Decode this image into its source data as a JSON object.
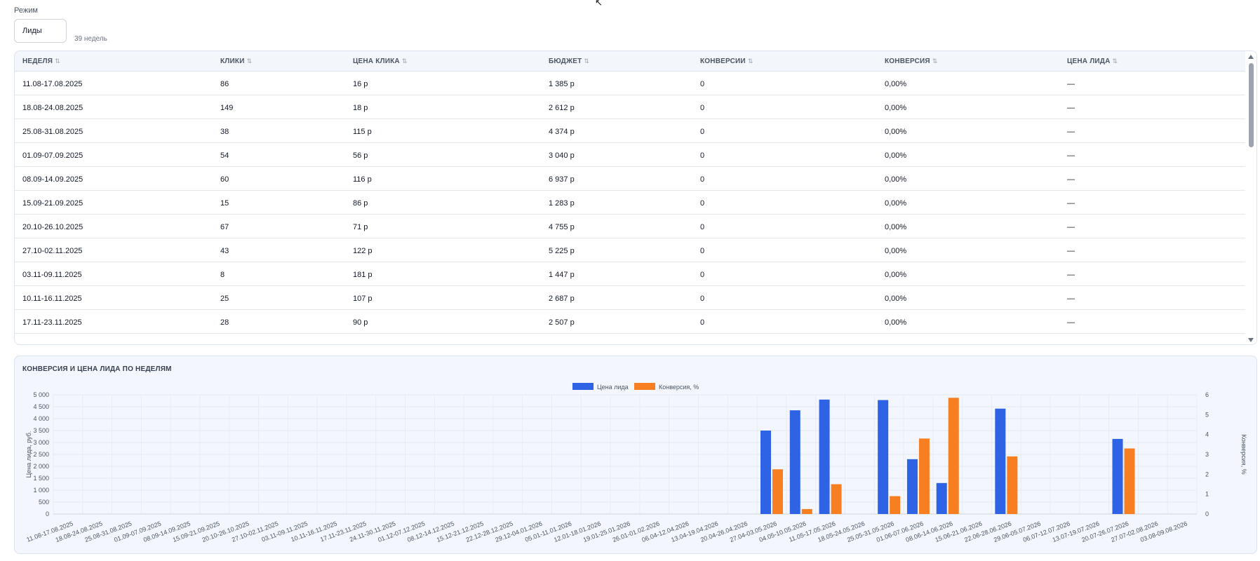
{
  "mode": {
    "label": "Режим",
    "value": "Лиды",
    "weeks_note": "39 недель"
  },
  "table": {
    "columns": [
      "НЕДЕЛЯ",
      "КЛИКИ",
      "ЦЕНА КЛИКА",
      "БЮДЖЕТ",
      "КОНВЕРСИИ",
      "КОНВЕРСИЯ",
      "ЦЕНА ЛИДА"
    ],
    "sort_icon": "⇅",
    "rows": [
      [
        "11.08-17.08.2025",
        "86",
        "16 р",
        "1 385 р",
        "0",
        "0,00%",
        "—"
      ],
      [
        "18.08-24.08.2025",
        "149",
        "18 р",
        "2 612 р",
        "0",
        "0,00%",
        "—"
      ],
      [
        "25.08-31.08.2025",
        "38",
        "115 р",
        "4 374 р",
        "0",
        "0,00%",
        "—"
      ],
      [
        "01.09-07.09.2025",
        "54",
        "56 р",
        "3 040 р",
        "0",
        "0,00%",
        "—"
      ],
      [
        "08.09-14.09.2025",
        "60",
        "116 р",
        "6 937 р",
        "0",
        "0,00%",
        "—"
      ],
      [
        "15.09-21.09.2025",
        "15",
        "86 р",
        "1 283 р",
        "0",
        "0,00%",
        "—"
      ],
      [
        "20.10-26.10.2025",
        "67",
        "71 р",
        "4 755 р",
        "0",
        "0,00%",
        "—"
      ],
      [
        "27.10-02.11.2025",
        "43",
        "122 р",
        "5 225 р",
        "0",
        "0,00%",
        "—"
      ],
      [
        "03.11-09.11.2025",
        "8",
        "181 р",
        "1 447 р",
        "0",
        "0,00%",
        "—"
      ],
      [
        "10.11-16.11.2025",
        "25",
        "107 р",
        "2 687 р",
        "0",
        "0,00%",
        "—"
      ],
      [
        "17.11-23.11.2025",
        "28",
        "90 р",
        "2 507 р",
        "0",
        "0,00%",
        "—"
      ]
    ]
  },
  "chart": {
    "title": "КОНВЕРСИЯ И ЦЕНА ЛИДА ПО НЕДЕЛЯМ"
  },
  "chart_data": {
    "type": "bar",
    "categories": [
      "11.08-17.08.2025",
      "18.08-24.08.2025",
      "25.08-31.08.2025",
      "01.09-07.09.2025",
      "08.09-14.09.2025",
      "15.09-21.09.2025",
      "20.10-26.10.2025",
      "27.10-02.11.2025",
      "03.11-09.11.2025",
      "10.11-16.11.2025",
      "17.11-23.11.2025",
      "24.11-30.11.2025",
      "01.12-07.12.2025",
      "08.12-14.12.2025",
      "15.12-21.12.2025",
      "22.12-28.12.2025",
      "29.12-04.01.2026",
      "05.01-11.01.2026",
      "12.01-18.01.2026",
      "19.01-25.01.2026",
      "26.01-01.02.2026",
      "06.04-12.04.2026",
      "13.04-19.04.2026",
      "20.04-26.04.2026",
      "27.04-03.05.2026",
      "04.05-10.05.2026",
      "11.05-17.05.2026",
      "18.05-24.05.2026",
      "25.05-31.05.2026",
      "01.06-07.06.2026",
      "08.06-14.06.2026",
      "15.06-21.06.2026",
      "22.06-28.06.2026",
      "29.06-05.07.2026",
      "06.07-12.07.2026",
      "13.07-19.07.2026",
      "20.07-26.07.2026",
      "27.07-02.08.2026",
      "03.08-09.08.2026"
    ],
    "series": [
      {
        "name": "Цена лида",
        "axis": "left",
        "color": "#2f63e6",
        "values": [
          null,
          null,
          null,
          null,
          null,
          null,
          null,
          null,
          null,
          null,
          null,
          null,
          null,
          null,
          null,
          null,
          null,
          null,
          null,
          null,
          null,
          null,
          null,
          null,
          3500,
          4350,
          4800,
          null,
          4780,
          2300,
          1300,
          null,
          4420,
          null,
          null,
          null,
          3150,
          null,
          null
        ]
      },
      {
        "name": "Конверсия, %",
        "axis": "right",
        "color": "#f77f22",
        "values": [
          0,
          0,
          0,
          0,
          0,
          0,
          0,
          0,
          0,
          0,
          0,
          0,
          0,
          0,
          0,
          0,
          0,
          0,
          0,
          0,
          0,
          0,
          0,
          0,
          2.25,
          0.25,
          1.5,
          0,
          0.9,
          3.8,
          5.85,
          0,
          2.9,
          0,
          0,
          0,
          3.3,
          0,
          0
        ]
      }
    ],
    "ylabel": "Цена лида, руб.",
    "y2label": "Конверсия, %",
    "ylim": [
      0,
      5000
    ],
    "y_ticks": [
      "0",
      "500",
      "1 000",
      "1 500",
      "2 000",
      "2 500",
      "3 000",
      "3 500",
      "4 000",
      "4 500",
      "5 000"
    ],
    "y2lim": [
      0,
      6
    ],
    "y2_ticks": [
      "0",
      "1",
      "2",
      "3",
      "4",
      "5",
      "6"
    ],
    "legend_position": "top-center",
    "grid": true
  }
}
